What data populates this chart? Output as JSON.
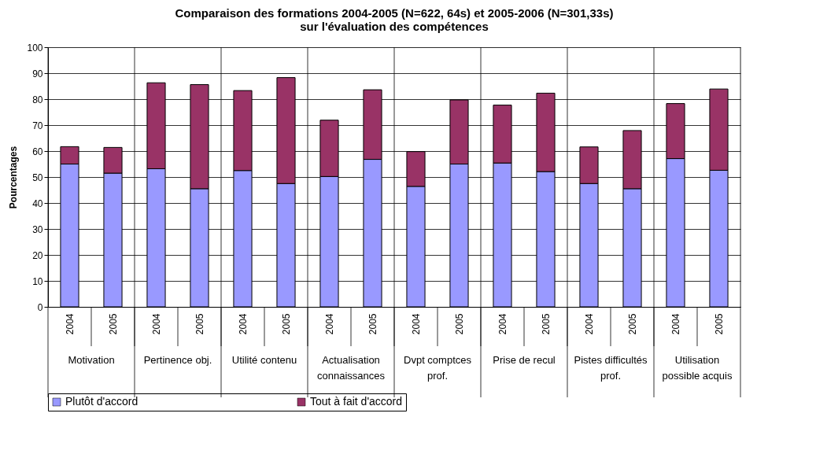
{
  "chart_data": {
    "type": "bar",
    "title": "Comparaison des formations 2004-2005  (N=622, 64s) et 2005-2006 (N=301,33s)\nsur l'évaluation des compétences",
    "ylabel": "Pourcentages",
    "categories": [
      "2004",
      "2005",
      "2004",
      "2005",
      "2004",
      "2005",
      "2004",
      "2005",
      "2004",
      "2005",
      "2004",
      "2005",
      "2004",
      "2005",
      "2004",
      "2005"
    ],
    "annotations": [
      "Motivation",
      "Pertinence obj.",
      "Utilité contenu",
      "Actualisation\nconnaissances",
      "Dvpt comptces\nprof.",
      "Prise de recul",
      "Pistes difficultés\nprof.",
      "Utilisation\npossible acquis"
    ],
    "stacked": true,
    "series": [
      {
        "name": "Plutôt d'accord",
        "color": "#9999ff",
        "values": [
          55,
          51.5,
          53.2,
          45.5,
          52.5,
          47.5,
          50.2,
          56.8,
          46.4,
          55.0,
          55.4,
          52.1,
          47.5,
          45.5,
          57.1,
          52.6
        ]
      },
      {
        "name": "Tout à fait d'accord",
        "color": "#993366",
        "values": [
          6.7,
          9.9,
          33.1,
          40.1,
          30.8,
          40.8,
          21.7,
          26.8,
          13.4,
          24.7,
          22.3,
          30.2,
          14.1,
          22.4,
          21.2,
          31.3
        ]
      }
    ],
    "ylim": [
      0,
      100
    ],
    "yticks": [
      0,
      10,
      20,
      30,
      40,
      50,
      60,
      70,
      80,
      90,
      100
    ],
    "grid": "y",
    "legend": "bottom"
  }
}
